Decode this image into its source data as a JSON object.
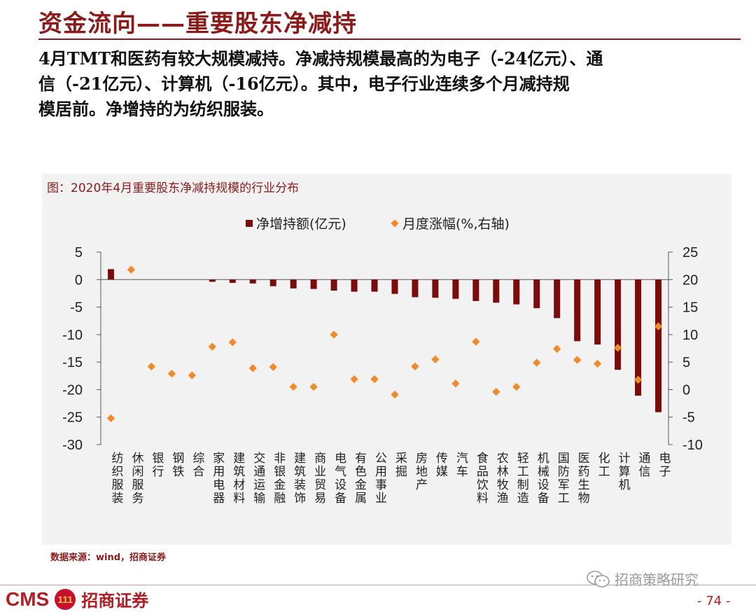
{
  "header": {
    "title": "资金流向——重要股东净减持",
    "intro_lines": [
      "4月TMT和医药有较大规模减持。净减持规模最高的为电子（-24亿元）、通",
      "信（-21亿元）、计算机（-16亿元）。其中，电子行业连续多个月减持规",
      "模居前。净增持的为纺织服装。"
    ]
  },
  "chart_data": {
    "type": "bar",
    "caption": "图：2020年4月重要股东净减持规模的行业分布",
    "categories": [
      "纺织服装",
      "休闲服务",
      "银行",
      "钢铁",
      "综合",
      "家用电器",
      "建筑材料",
      "交通运输",
      "非银金融",
      "建筑装饰",
      "商业贸易",
      "电气设备",
      "有色金属",
      "公用事业",
      "采掘",
      "房地产",
      "传媒",
      "汽车",
      "食品饮料",
      "农林牧渔",
      "轻工制造",
      "机械设备",
      "国防军工",
      "医药生物",
      "化工",
      "计算机",
      "通信",
      "电子"
    ],
    "series": [
      {
        "name": "净增持额(亿元)",
        "type": "bar",
        "axis": "left",
        "color": "#7a0c0c",
        "values": [
          1.9,
          0,
          0,
          0,
          0,
          -0.4,
          -0.6,
          -0.7,
          -1.2,
          -1.6,
          -1.7,
          -2.0,
          -2.2,
          -2.2,
          -2.6,
          -3.2,
          -3.3,
          -3.5,
          -3.9,
          -4.2,
          -4.5,
          -5.2,
          -7.0,
          -11.2,
          -11.8,
          -16.4,
          -21.1,
          -24.1
        ]
      },
      {
        "name": "月度涨幅(%,右轴)",
        "type": "scatter",
        "axis": "right",
        "color": "#f08a2a",
        "values": [
          -5.2,
          21.8,
          4.2,
          2.9,
          2.6,
          7.8,
          8.6,
          3.9,
          4.1,
          0.5,
          0.5,
          10.0,
          1.9,
          1.9,
          -0.9,
          4.2,
          5.5,
          1.1,
          8.7,
          -0.4,
          0.5,
          4.9,
          7.4,
          5.4,
          4.7,
          7.6,
          1.8,
          11.5
        ]
      }
    ],
    "left_axis": {
      "min": -30,
      "max": 5,
      "ticks": [
        5,
        0,
        -5,
        -10,
        -15,
        -20,
        -25,
        -30
      ]
    },
    "right_axis": {
      "min": -10,
      "max": 25,
      "ticks": [
        25,
        20,
        15,
        10,
        5,
        0,
        -5,
        -10
      ]
    },
    "legend": "top-center",
    "grid": false
  },
  "source": "数据来源：wind，招商证券",
  "footer": {
    "logo_text": "CMS",
    "logo_mark": "111",
    "logo_cn": "招商证券",
    "watermark": "招商策略研究",
    "page_number": "- 74 -"
  }
}
